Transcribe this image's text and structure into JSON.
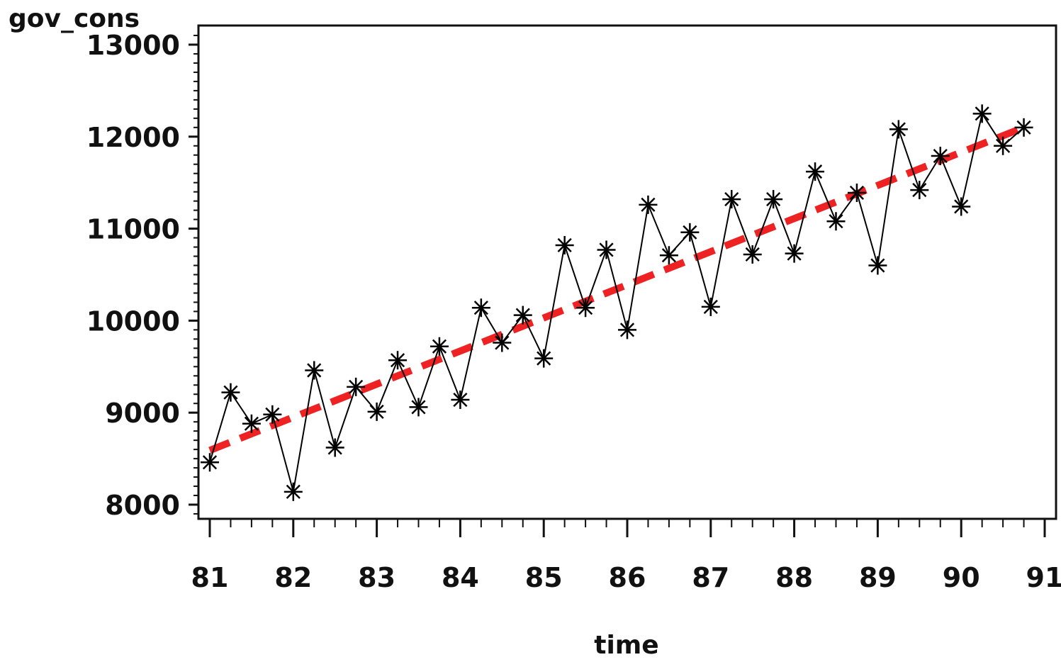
{
  "chart_data": {
    "type": "line",
    "ylabel": "gov_cons",
    "xlabel": "time",
    "xlim": [
      81,
      91
    ],
    "ylim": [
      7800,
      13200
    ],
    "x_ticks": [
      81,
      82,
      83,
      84,
      85,
      86,
      87,
      88,
      89,
      90,
      91
    ],
    "x_tick_labels": [
      "81",
      "82",
      "83",
      "84",
      "85",
      "86",
      "87",
      "88",
      "89",
      "90",
      "91"
    ],
    "y_ticks": [
      8000,
      9000,
      10000,
      11000,
      12000,
      13000
    ],
    "y_tick_labels": [
      "8000",
      "9000",
      "10000",
      "11000",
      "12000",
      "13000"
    ],
    "grid": false,
    "legend": "none",
    "series": [
      {
        "style": "solid-line-asterisk-markers",
        "color": "#000000",
        "x": [
          81.0,
          81.25,
          81.5,
          81.75,
          82.0,
          82.25,
          82.5,
          82.75,
          83.0,
          83.25,
          83.5,
          83.75,
          84.0,
          84.25,
          84.5,
          84.75,
          85.0,
          85.25,
          85.5,
          85.75,
          86.0,
          86.25,
          86.5,
          86.75,
          87.0,
          87.25,
          87.5,
          87.75,
          88.0,
          88.25,
          88.5,
          88.75,
          89.0,
          89.25,
          89.5,
          89.75,
          90.0,
          90.25,
          90.5,
          90.75
        ],
        "values": [
          8460,
          9220,
          8880,
          8980,
          8140,
          9460,
          8620,
          9280,
          9010,
          9570,
          9060,
          9720,
          9140,
          10140,
          9760,
          10060,
          9590,
          10820,
          10140,
          10770,
          9900,
          11260,
          10710,
          10960,
          10150,
          11320,
          10720,
          11320,
          10730,
          11620,
          11080,
          11390,
          10600,
          12080,
          11420,
          11790,
          11240,
          12250,
          11900,
          12100
        ]
      },
      {
        "style": "dashed-trend-line",
        "color": "#ee2222",
        "x": [
          81.0,
          90.75
        ],
        "values": [
          8590,
          12100
        ]
      }
    ]
  }
}
